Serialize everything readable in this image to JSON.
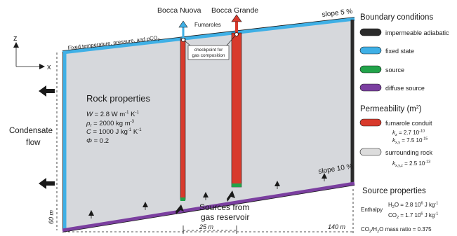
{
  "vents": {
    "left": "Bocca Nuova",
    "right": "Bocca Grande",
    "fumaroles": "Fumaroles"
  },
  "top_boundary_label": "Fixed temperature, pressure, and pCO",
  "top_boundary_sub": "2",
  "slope_top": "slope 5 %",
  "slope_bottom": "slope 10 %",
  "checkpoint_label": [
    "checkpoint for",
    "gas composition"
  ],
  "axes": {
    "z": "z",
    "x": "x"
  },
  "condensate_flow": [
    "Condensate",
    "flow"
  ],
  "rock_properties": {
    "title": "Rock properties",
    "W": {
      "symbol": "W",
      "value": " = 2.8 W m",
      "e1": "-1",
      "mid": " K",
      "e2": "-1"
    },
    "rho": {
      "symbol": "ρ",
      "sub": "r",
      "value": " = 2000 kg m",
      "e1": "-3"
    },
    "C": {
      "symbol": "C",
      "value": " = 1000 J kg",
      "e1": "-1",
      "mid": " K",
      "e2": "-1"
    },
    "phi": {
      "symbol": "Φ",
      "value": " = 0.2"
    }
  },
  "sources_label": [
    "Sources from",
    "gas reservoir"
  ],
  "dimensions": {
    "height": "60 m",
    "gap": "25 m",
    "length": "140 m"
  },
  "legend": {
    "boundary_title": "Boundary conditions",
    "boundary_items": [
      {
        "label": "impermeable adiabatic",
        "color": "#2b2b2b"
      },
      {
        "label": "fixed state",
        "color": "#3fb0e6"
      },
      {
        "label": "source",
        "color": "#22a34a"
      },
      {
        "label": "diffuse source",
        "color": "#7b3fa0"
      }
    ],
    "perm_title": "Permeability (m",
    "perm_title_sup": "2",
    "perm_title_end": ")",
    "conduit": {
      "label": "fumarole conduit",
      "color": "#d83a2c",
      "kz": {
        "sub": "z",
        "value": " = 2.7 10",
        "exp": "-10"
      },
      "kxy": {
        "sub": "x,y",
        "value": " = 7.5 10",
        "exp": "-15"
      }
    },
    "rock": {
      "label": "surrounding rock",
      "color": "#dcdcdc",
      "kxyz": {
        "sub": "x,y,z",
        "value": " = 2.5 10",
        "exp": "-13"
      }
    }
  },
  "source_properties": {
    "title": "Source properties",
    "enthalpy": "Enthalpy",
    "h2o": {
      "pre": "H",
      "sub": "2",
      "post": "O",
      "value": " = 2.8 10",
      "exp": "6",
      "unit": " J kg",
      "uexp": "-1"
    },
    "co2": {
      "pre": "CO",
      "sub": "2",
      "value": " = 1.7 10",
      "exp": "6",
      "unit": " J kg",
      "uexp": "-1"
    },
    "ratio": {
      "a": "CO",
      "asub": "2",
      "b": "/H",
      "bsub": "2",
      "c": "O mass ratio = 0.375"
    }
  },
  "colors": {
    "rock": "#d6d8dc",
    "fixed_state": "#3fb0e6",
    "impermeable": "#2b2b2b",
    "source": "#22a34a",
    "diffuse_source": "#7b3fa0",
    "conduit": "#d83a2c"
  }
}
